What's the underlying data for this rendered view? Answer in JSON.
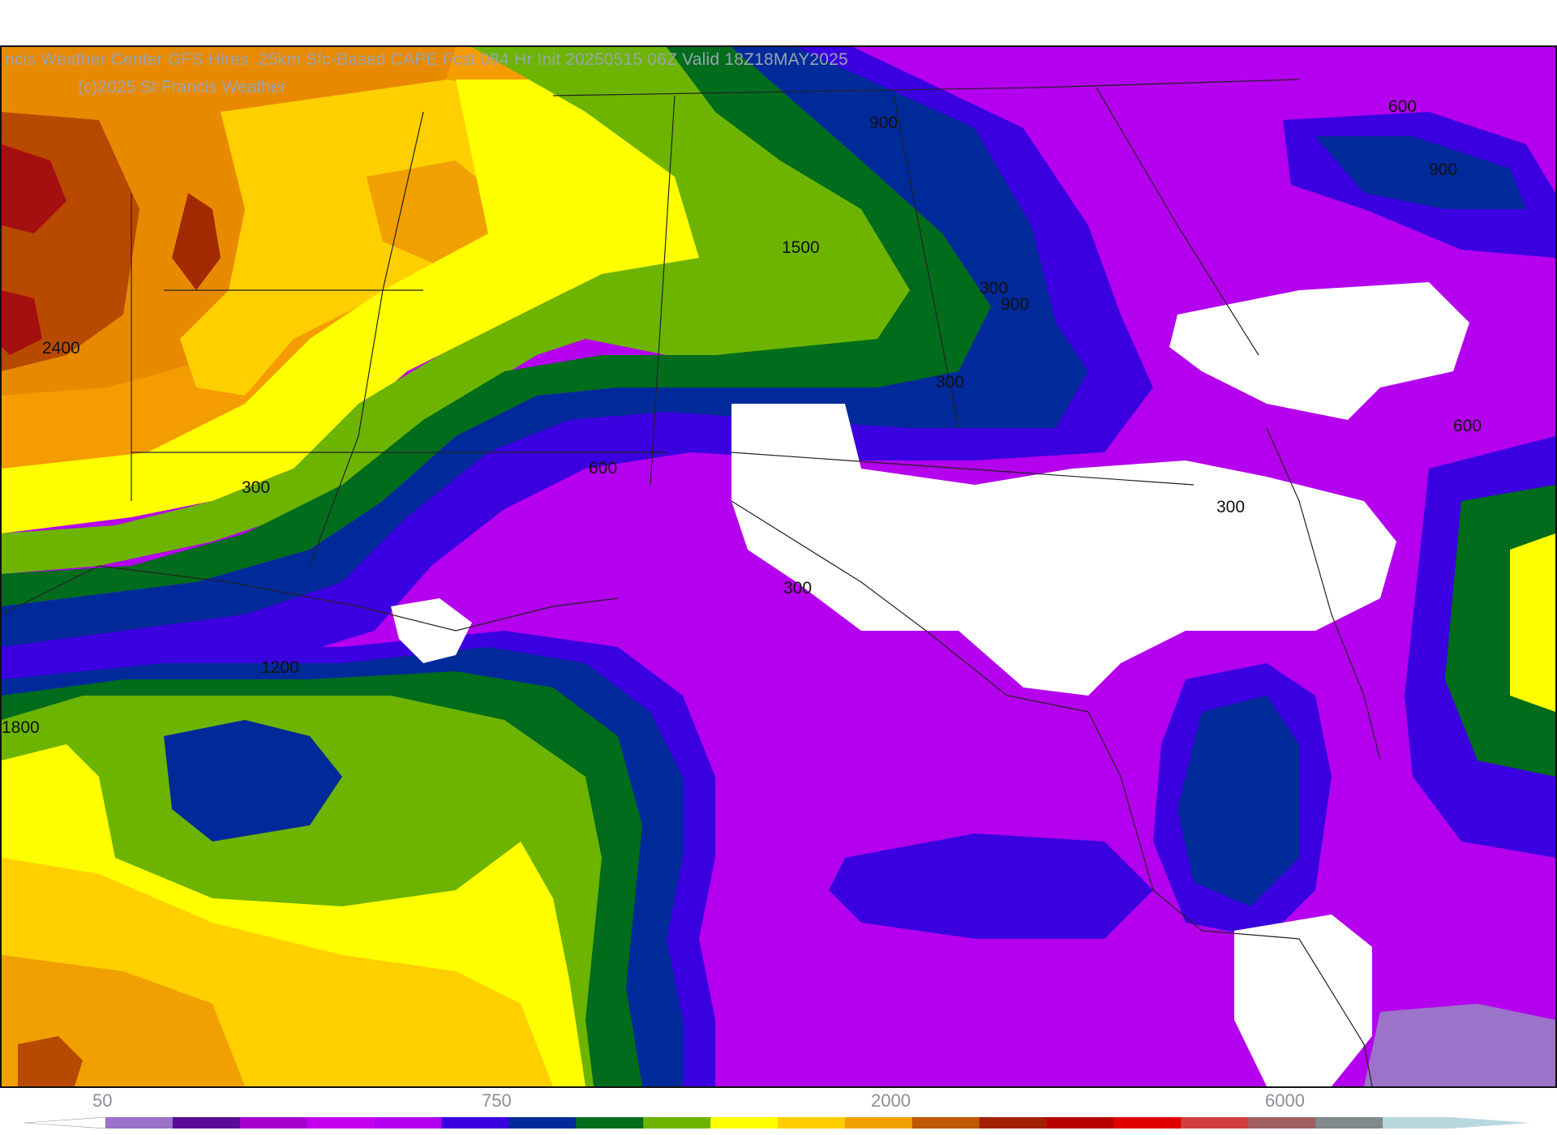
{
  "map": {
    "title": "ncis Weather Center GFS Hires .25km Sfc-Based CAPE  Fcst 084 Hr Init 20250515 06Z  Valid 18Z18MAY2025",
    "credit": "(c)2025 St Francis Weather",
    "contour_labels": [
      "900",
      "600",
      "900",
      "1500",
      "300",
      "900",
      "2400",
      "300",
      "600",
      "300",
      "600",
      "300",
      "300",
      "1200",
      "1800"
    ]
  },
  "legend": {
    "tick_labels": [
      "50",
      "750",
      "2000",
      "6000"
    ],
    "colors": [
      "#9b73c9",
      "#5a0a96",
      "#a600cf",
      "#c400ef",
      "#b400f0",
      "#3a00e0",
      "#002a9a",
      "#006c1c",
      "#6cb400",
      "#ffff00",
      "#ffcf00",
      "#f0a000",
      "#c05800",
      "#a02000",
      "#b80000",
      "#e00000",
      "#d04040",
      "#a06060",
      "#808a8a",
      "#b8d8e0"
    ]
  }
}
